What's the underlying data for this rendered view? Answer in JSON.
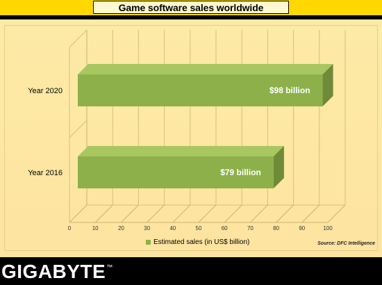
{
  "header": {
    "title": "Game software sales worldwide"
  },
  "legend": {
    "label": "Estimated sales (in US$ billion)",
    "color": "#8db04a"
  },
  "source": "Source: DFC Intelligence",
  "logo": {
    "text": "GIGABYTE",
    "tm": "™"
  },
  "colors": {
    "bar_front": "#8db04a",
    "bar_top": "#a9c761",
    "bar_side": "#6f8a38",
    "panel_bg": "#fde4a0",
    "band": "#ffd800"
  },
  "chart_data": {
    "type": "bar",
    "orientation": "horizontal",
    "categories": [
      "Year 2020",
      "Year 2016"
    ],
    "series": [
      {
        "name": "Estimated sales (in US$ billion)",
        "values": [
          98,
          79
        ]
      }
    ],
    "data_labels": [
      "$98 billion",
      "$79 billion"
    ],
    "xlim": [
      0,
      100
    ],
    "xticks": [
      0,
      10,
      20,
      30,
      40,
      50,
      60,
      70,
      80,
      90,
      100
    ],
    "title": "Game software sales worldwide",
    "xlabel": "",
    "ylabel": "",
    "grid": true,
    "legend_position": "bottom",
    "style": "3d"
  }
}
